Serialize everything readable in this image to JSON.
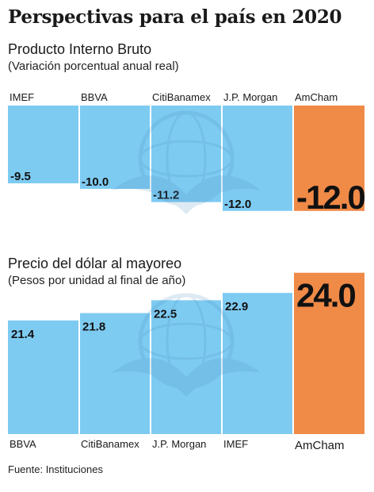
{
  "title": "Perspectivas para el país en 2020",
  "source": "Fuente: Instituciones",
  "colors": {
    "bar": "#7ecbf2",
    "highlight": "#f08a47",
    "separator": "#ffffff"
  },
  "chart_data": [
    {
      "type": "bar",
      "title": "Producto Interno Bruto",
      "subtitle": "(Variación porcentual anual real)",
      "categories": [
        "IMEF",
        "BBVA",
        "CitiBanamex",
        "J.P. Morgan",
        "AmCham"
      ],
      "values": [
        -9.5,
        -10.0,
        -11.2,
        -12.0,
        -12.0
      ],
      "labels": [
        "-9.5",
        "-10.0",
        "-11.2",
        "-12.0",
        "-12.0"
      ],
      "highlight": "AmCham",
      "category_label_position": "top"
    },
    {
      "type": "bar",
      "title": "Precio del dólar al mayoreo",
      "subtitle": "(Pesos por unidad al final de año)",
      "categories": [
        "BBVA",
        "CitiBanamex",
        "J.P. Morgan",
        "IMEF",
        "AmCham"
      ],
      "values": [
        21.4,
        21.8,
        22.5,
        22.9,
        24.0
      ],
      "labels": [
        "21.4",
        "21.8",
        "22.5",
        "22.9",
        "24.0"
      ],
      "highlight": "AmCham",
      "category_label_position": "bottom"
    }
  ]
}
